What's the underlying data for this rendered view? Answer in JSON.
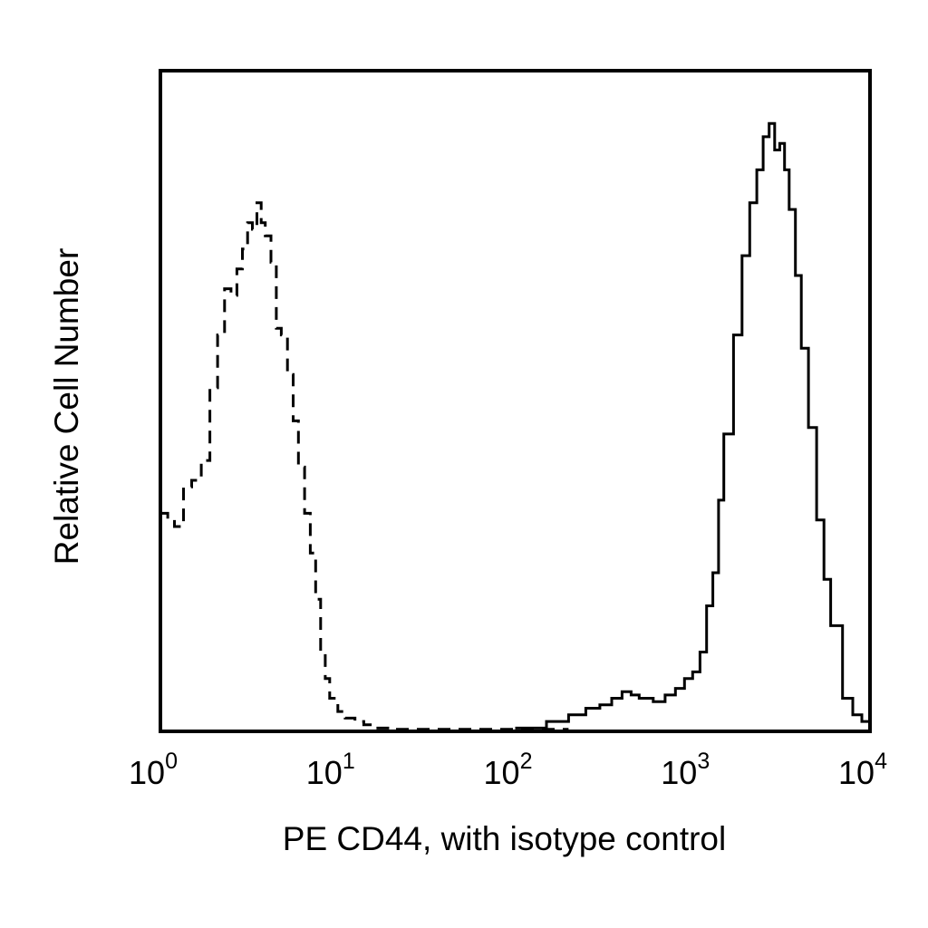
{
  "chart_data": {
    "type": "line",
    "xlabel": "PE CD44, with isotype control",
    "ylabel": "Relative Cell Number",
    "x_scale": "log",
    "xlim": [
      1,
      10000
    ],
    "ylim": [
      0,
      1
    ],
    "grid": false,
    "x_ticks": [
      {
        "base": "10",
        "exp": "0",
        "value": 1
      },
      {
        "base": "10",
        "exp": "1",
        "value": 10
      },
      {
        "base": "10",
        "exp": "2",
        "value": 100
      },
      {
        "base": "10",
        "exp": "3",
        "value": 1000
      },
      {
        "base": "10",
        "exp": "4",
        "value": 10000
      }
    ],
    "series": [
      {
        "style": "dashed",
        "x": [
          1.0,
          1.1,
          1.2,
          1.35,
          1.5,
          1.7,
          1.9,
          2.1,
          2.3,
          2.5,
          2.7,
          2.9,
          3.1,
          3.3,
          3.5,
          3.7,
          3.9,
          4.2,
          4.5,
          4.8,
          5.2,
          5.6,
          6.0,
          6.5,
          7.0,
          7.5,
          8.0,
          8.5,
          9.0,
          10.0,
          11.0,
          12.5,
          14.0,
          16.0,
          20.0,
          30.0,
          50.0,
          100.0,
          200.0
        ],
        "y": [
          0.33,
          0.32,
          0.31,
          0.37,
          0.38,
          0.41,
          0.52,
          0.6,
          0.67,
          0.66,
          0.7,
          0.73,
          0.77,
          0.76,
          0.8,
          0.77,
          0.75,
          0.71,
          0.61,
          0.6,
          0.54,
          0.47,
          0.4,
          0.33,
          0.27,
          0.2,
          0.12,
          0.08,
          0.05,
          0.03,
          0.02,
          0.015,
          0.01,
          0.005,
          0.003,
          0.003,
          0.003,
          0.003,
          0.003
        ]
      },
      {
        "style": "solid",
        "x": [
          100,
          150,
          200,
          250,
          300,
          350,
          400,
          450,
          500,
          600,
          700,
          800,
          900,
          1000,
          1100,
          1200,
          1300,
          1400,
          1500,
          1700,
          1900,
          2100,
          2300,
          2500,
          2700,
          2900,
          3100,
          3300,
          3500,
          3800,
          4100,
          4500,
          5000,
          5500,
          6000,
          7000,
          8000,
          9000,
          10000
        ],
        "y": [
          0.005,
          0.015,
          0.025,
          0.035,
          0.04,
          0.05,
          0.06,
          0.055,
          0.05,
          0.045,
          0.055,
          0.065,
          0.08,
          0.09,
          0.12,
          0.19,
          0.24,
          0.35,
          0.45,
          0.6,
          0.72,
          0.8,
          0.85,
          0.9,
          0.92,
          0.88,
          0.89,
          0.85,
          0.79,
          0.69,
          0.58,
          0.46,
          0.32,
          0.23,
          0.16,
          0.05,
          0.025,
          0.015,
          0.01
        ]
      }
    ]
  }
}
